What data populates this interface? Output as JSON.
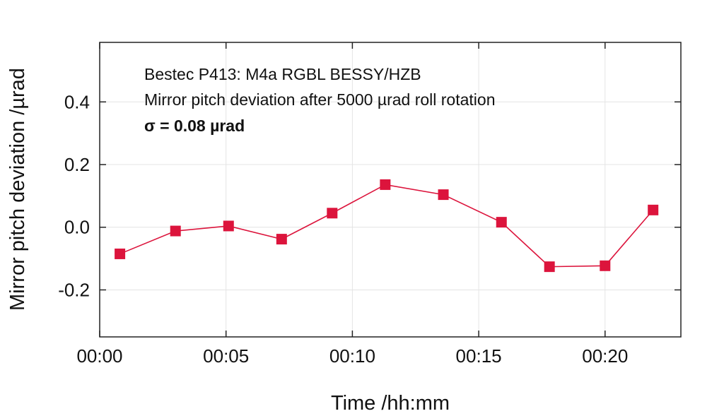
{
  "chart_data": {
    "type": "line",
    "xlabel": "Time /hh:mm",
    "ylabel": "Mirror pitch deviation /µrad",
    "xlim": [
      0,
      23
    ],
    "ylim": [
      -0.35,
      0.59
    ],
    "x_ticks": [
      0,
      5,
      10,
      15,
      20
    ],
    "x_tick_labels": [
      "00:00",
      "00:05",
      "00:10",
      "00:15",
      "00:20"
    ],
    "y_ticks": [
      -0.2,
      0.0,
      0.2,
      0.4
    ],
    "y_tick_labels": [
      "-0.2",
      "0.0",
      "0.2",
      "0.4"
    ],
    "grid": true,
    "annotations": [
      "Bestec P413: M4a RGBL BESSY/HZB",
      "Mirror pitch deviation after 5000 µrad roll rotation",
      "σ = 0.08 µrad"
    ],
    "series": [
      {
        "color": "#dc143c",
        "marker": "square",
        "x": [
          0.8,
          3.0,
          5.1,
          7.2,
          9.2,
          11.3,
          13.6,
          15.9,
          17.8,
          20.0,
          21.9
        ],
        "y": [
          -0.085,
          -0.012,
          0.004,
          -0.038,
          0.045,
          0.136,
          0.104,
          0.016,
          -0.126,
          -0.123,
          0.055
        ]
      }
    ]
  }
}
